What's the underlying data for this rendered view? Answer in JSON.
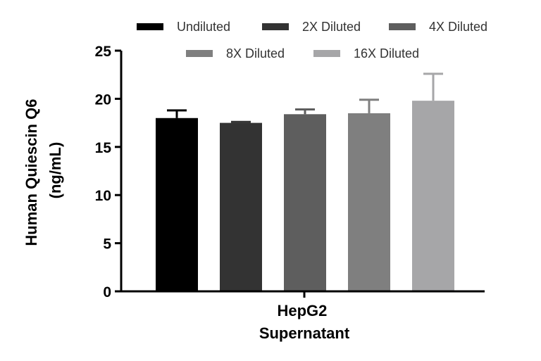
{
  "chart_data": {
    "type": "bar",
    "ylabel_lines": [
      "Human Quiescin Q6",
      "(ng/mL)"
    ],
    "category_lines": [
      "HepG2",
      "Supernatant"
    ],
    "ylim": [
      0,
      25
    ],
    "yticks": [
      "0",
      "5",
      "10",
      "15",
      "20",
      "25"
    ],
    "legend_position": "top",
    "series": [
      {
        "name": "Undiluted",
        "value": 18.0,
        "error": 0.8,
        "color": "#000000"
      },
      {
        "name": "2X Diluted",
        "value": 17.5,
        "error": 0.1,
        "color": "#333333"
      },
      {
        "name": "4X Diluted",
        "value": 18.4,
        "error": 0.5,
        "color": "#5e5e5e"
      },
      {
        "name": "8X Diluted",
        "value": 18.5,
        "error": 1.4,
        "color": "#7f7f7f"
      },
      {
        "name": "16X Diluted",
        "value": 19.8,
        "error": 2.8,
        "color": "#a6a6a8"
      }
    ]
  }
}
